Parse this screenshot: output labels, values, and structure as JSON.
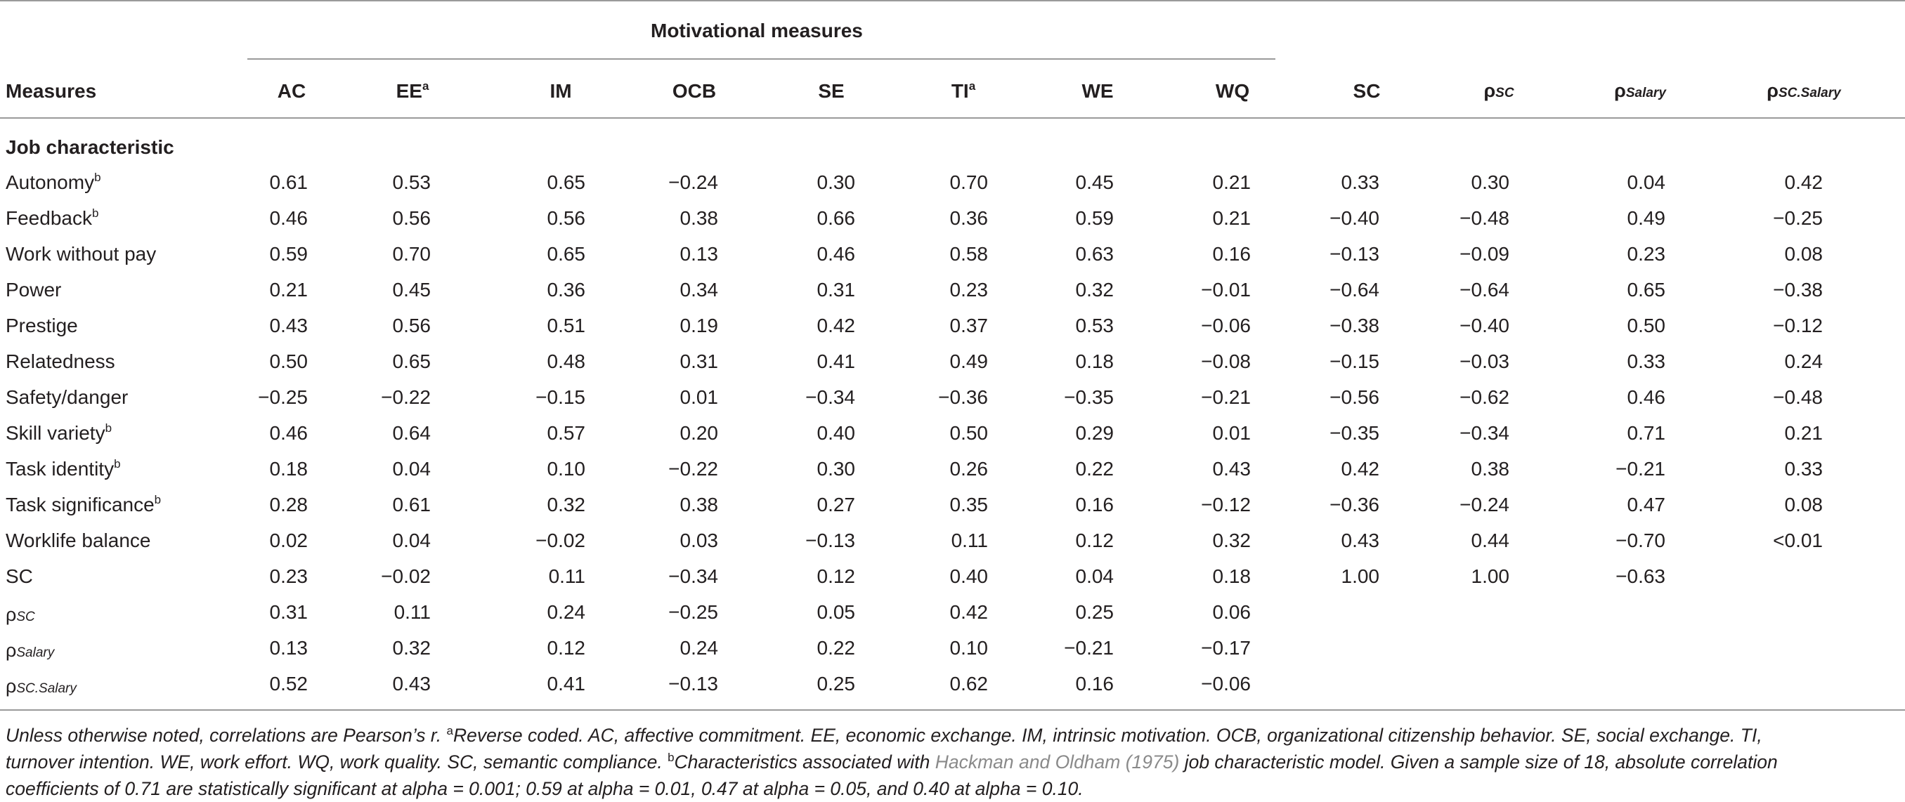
{
  "table": {
    "group_header": "Motivational measures",
    "row_header": "Measures",
    "columns": [
      "AC",
      "EE",
      "IM",
      "OCB",
      "SE",
      "TI",
      "WE",
      "WQ",
      "SC",
      "ρ",
      "ρ",
      "ρ"
    ],
    "column_sups": [
      "",
      "a",
      "",
      "",
      "",
      "a",
      "",
      "",
      "",
      "",
      "",
      ""
    ],
    "column_subs": [
      "",
      "",
      "",
      "",
      "",
      "",
      "",
      "",
      "",
      "SC",
      "Salary",
      "SC.Salary"
    ],
    "section_label": "Job characteristic",
    "rows": [
      {
        "label": "Autonomy",
        "sup": "b",
        "sub": "",
        "values": [
          "0.61",
          "0.53",
          "0.65",
          "−0.24",
          "0.30",
          "0.70",
          "0.45",
          "0.21",
          "0.33",
          "0.30",
          "0.04",
          "0.42"
        ]
      },
      {
        "label": "Feedback",
        "sup": "b",
        "sub": "",
        "values": [
          "0.46",
          "0.56",
          "0.56",
          "0.38",
          "0.66",
          "0.36",
          "0.59",
          "0.21",
          "−0.40",
          "−0.48",
          "0.49",
          "−0.25"
        ]
      },
      {
        "label": "Work without pay",
        "sup": "",
        "sub": "",
        "values": [
          "0.59",
          "0.70",
          "0.65",
          "0.13",
          "0.46",
          "0.58",
          "0.63",
          "0.16",
          "−0.13",
          "−0.09",
          "0.23",
          "0.08"
        ]
      },
      {
        "label": "Power",
        "sup": "",
        "sub": "",
        "values": [
          "0.21",
          "0.45",
          "0.36",
          "0.34",
          "0.31",
          "0.23",
          "0.32",
          "−0.01",
          "−0.64",
          "−0.64",
          "0.65",
          "−0.38"
        ]
      },
      {
        "label": "Prestige",
        "sup": "",
        "sub": "",
        "values": [
          "0.43",
          "0.56",
          "0.51",
          "0.19",
          "0.42",
          "0.37",
          "0.53",
          "−0.06",
          "−0.38",
          "−0.40",
          "0.50",
          "−0.12"
        ]
      },
      {
        "label": "Relatedness",
        "sup": "",
        "sub": "",
        "values": [
          "0.50",
          "0.65",
          "0.48",
          "0.31",
          "0.41",
          "0.49",
          "0.18",
          "−0.08",
          "−0.15",
          "−0.03",
          "0.33",
          "0.24"
        ]
      },
      {
        "label": "Safety/danger",
        "sup": "",
        "sub": "",
        "values": [
          "−0.25",
          "−0.22",
          "−0.15",
          "0.01",
          "−0.34",
          "−0.36",
          "−0.35",
          "−0.21",
          "−0.56",
          "−0.62",
          "0.46",
          "−0.48"
        ]
      },
      {
        "label": "Skill variety",
        "sup": "b",
        "sub": "",
        "values": [
          "0.46",
          "0.64",
          "0.57",
          "0.20",
          "0.40",
          "0.50",
          "0.29",
          "0.01",
          "−0.35",
          "−0.34",
          "0.71",
          "0.21"
        ]
      },
      {
        "label": "Task identity",
        "sup": "b",
        "sub": "",
        "values": [
          "0.18",
          "0.04",
          "0.10",
          "−0.22",
          "0.30",
          "0.26",
          "0.22",
          "0.43",
          "0.42",
          "0.38",
          "−0.21",
          "0.33"
        ]
      },
      {
        "label": "Task significance",
        "sup": "b",
        "sub": "",
        "values": [
          "0.28",
          "0.61",
          "0.32",
          "0.38",
          "0.27",
          "0.35",
          "0.16",
          "−0.12",
          "−0.36",
          "−0.24",
          "0.47",
          "0.08"
        ]
      },
      {
        "label": "Worklife balance",
        "sup": "",
        "sub": "",
        "values": [
          "0.02",
          "0.04",
          "−0.02",
          "0.03",
          "−0.13",
          "0.11",
          "0.12",
          "0.32",
          "0.43",
          "0.44",
          "−0.70",
          "<0.01"
        ]
      },
      {
        "label": "SC",
        "sup": "",
        "sub": "",
        "values": [
          "0.23",
          "−0.02",
          "0.11",
          "−0.34",
          "0.12",
          "0.40",
          "0.04",
          "0.18",
          "1.00",
          "1.00",
          "−0.63",
          ""
        ]
      },
      {
        "label": "ρ",
        "sup": "",
        "sub": "SC",
        "values": [
          "0.31",
          "0.11",
          "0.24",
          "−0.25",
          "0.05",
          "0.42",
          "0.25",
          "0.06",
          "",
          "",
          "",
          ""
        ]
      },
      {
        "label": "ρ",
        "sup": "",
        "sub": "Salary",
        "values": [
          "0.13",
          "0.32",
          "0.12",
          "0.24",
          "0.22",
          "0.10",
          "−0.21",
          "−0.17",
          "",
          "",
          "",
          ""
        ]
      },
      {
        "label": "ρ",
        "sup": "",
        "sub": "SC.Salary",
        "values": [
          "0.52",
          "0.43",
          "0.41",
          "−0.13",
          "0.25",
          "0.62",
          "0.16",
          "−0.06",
          "",
          "",
          "",
          ""
        ]
      }
    ]
  },
  "notes": {
    "line1_a": "Unless otherwise noted, correlations are Pearson’s r.",
    "sup_a": "a",
    "line1_b": "Reverse coded. AC, affective commitment. EE, economic exchange. IM, intrinsic motivation. OCB, organizational citizenship behavior. SE, social exchange. TI,",
    "line2_a": "turnover intention. WE, work effort. WQ, work quality. SC, semantic compliance.",
    "sup_b": "b",
    "line2_b": "Characteristics associated with",
    "citation": "Hackman and Oldham (1975)",
    "line2_c": "job characteristic model. Given a sample size of 18, absolute correlation",
    "line3": "coefficients of 0.71 are statistically significant at alpha = 0.001; 0.59 at alpha = 0.01, 0.47 at alpha = 0.05, and 0.40 at alpha = 0.10."
  }
}
